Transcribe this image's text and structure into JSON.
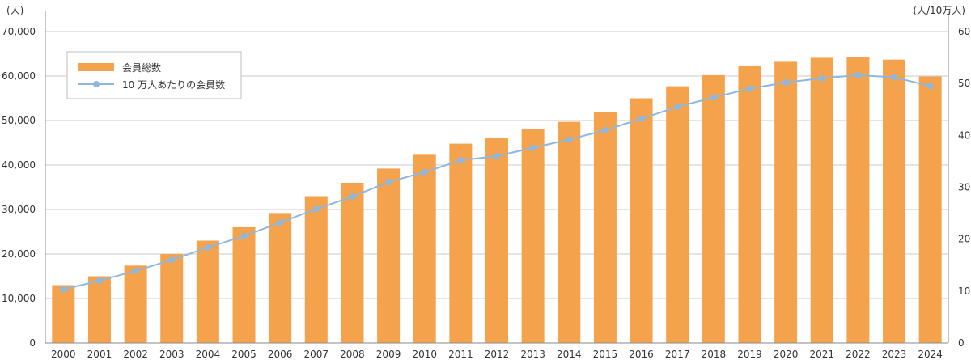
{
  "chart_data": {
    "type": "bar",
    "categories": [
      "2000",
      "2001",
      "2002",
      "2003",
      "2004",
      "2005",
      "2006",
      "2007",
      "2008",
      "2009",
      "2010",
      "2011",
      "2012",
      "2013",
      "2014",
      "2015",
      "2016",
      "2017",
      "2018",
      "2019",
      "2020",
      "2021",
      "2022",
      "2023",
      "2024"
    ],
    "series": [
      {
        "name": "会員総数",
        "type": "bar",
        "axis": "left",
        "color": "#F5A24C",
        "values": [
          13000,
          15000,
          17400,
          20000,
          23000,
          26000,
          29200,
          33000,
          36000,
          39200,
          42300,
          44800,
          46000,
          48000,
          49700,
          52000,
          55000,
          57700,
          60200,
          62300,
          63200,
          64100,
          64300,
          63700,
          59900
        ]
      },
      {
        "name": "10 万人あたりの会員数",
        "type": "line",
        "axis": "right",
        "color": "#8FB7DD",
        "values": [
          10.3,
          12.0,
          13.9,
          16.0,
          18.4,
          20.6,
          23.2,
          25.8,
          28.2,
          31.0,
          32.9,
          35.2,
          36.0,
          37.6,
          39.2,
          41.0,
          43.2,
          45.5,
          47.3,
          49.0,
          50.2,
          51.0,
          51.6,
          51.2,
          49.5
        ]
      }
    ],
    "yLeft": {
      "unit": "(人)",
      "min": 0,
      "max": 70000,
      "ticks": [
        "0",
        "10,000",
        "20,000",
        "30,000",
        "40,000",
        "50,000",
        "60,000",
        "70,000"
      ]
    },
    "yRight": {
      "unit": "(人/10万人)",
      "min": 0,
      "max": 60,
      "ticks": [
        "0",
        "10",
        "20",
        "30",
        "40",
        "50",
        "60"
      ]
    },
    "legend": {
      "position": "top-left",
      "items": [
        "会員総数",
        "10 万人あたりの会員数"
      ]
    },
    "grid": true
  }
}
